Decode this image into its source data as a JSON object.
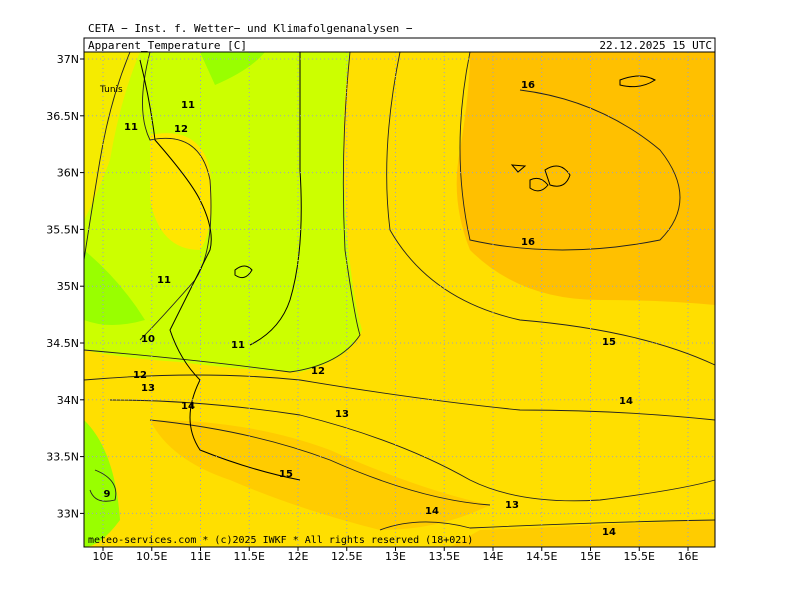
{
  "header": {
    "title": "CETA − Inst. f. Wetter− und Klimafolgenanalysen −",
    "parameter": "Apparent_Temperature [C]",
    "datetime": "22.12.2025 15 UTC"
  },
  "map": {
    "lat_labels": [
      "37N",
      "36.5N",
      "36N",
      "35.5N",
      "35N",
      "34.5N",
      "34N",
      "33.5N",
      "33N"
    ],
    "lon_labels": [
      "10E",
      "10.5E",
      "11E",
      "11.5E",
      "12E",
      "12.5E",
      "13E",
      "13.5E",
      "14E",
      "14.5E",
      "15E",
      "15.5E",
      "16E"
    ],
    "place_labels": [
      "Tunis"
    ],
    "contour_labels": [
      16,
      11,
      11,
      12,
      16,
      11,
      10,
      11,
      15,
      12,
      12,
      13,
      14,
      14,
      13,
      15,
      9,
      13,
      14,
      14
    ]
  },
  "footer": "meteo-services.com * (c)2025 IWKF * All rights reserved (18+021)"
}
